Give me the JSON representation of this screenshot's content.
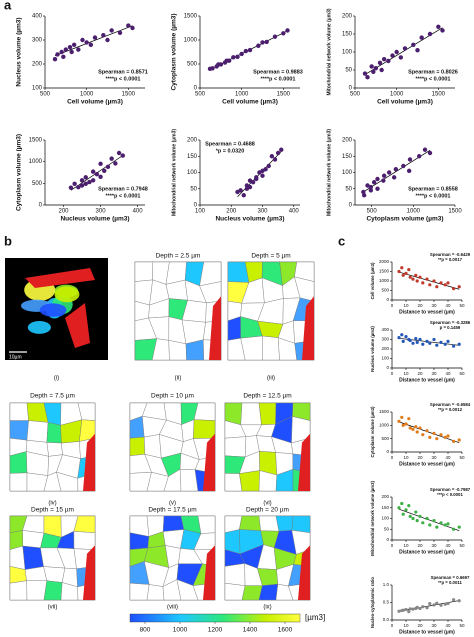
{
  "panel_labels": [
    "a",
    "b",
    "c"
  ],
  "panel_b": {
    "images": [
      {
        "label": "(i)",
        "scale_bar": "10µm"
      },
      {
        "title": "Depth = 2.5 µm",
        "label": "(ii)"
      },
      {
        "title": "Depth = 5 µm",
        "label": "(iii)"
      },
      {
        "title": "Depth = 7.5 µm",
        "label": "(iv)"
      },
      {
        "title": "Depth = 10 µm",
        "label": "(v)"
      },
      {
        "title": "Depth = 12.5 µm",
        "label": "(vi)"
      },
      {
        "title": "Depth = 15 µm",
        "label": "(vii)"
      },
      {
        "title": "Depth = 17.5 µm",
        "label": "(viii)"
      },
      {
        "title": "Depth = 20 µm",
        "label": "(ix)"
      }
    ],
    "colorbar": {
      "ticks": [
        800,
        1000,
        1200,
        1400,
        1600
      ],
      "unit": "[µm3]"
    }
  },
  "chart_data": [
    {
      "type": "scatter",
      "xlabel": "Cell volume (µm3)",
      "ylabel": "Nucleus volume (µm3)",
      "annotations": [
        "Spearman = 0.8571",
        "****p < 0.0001"
      ],
      "color": "#4b1e6e",
      "x": [
        620,
        650,
        700,
        720,
        750,
        800,
        820,
        850,
        900,
        950,
        1000,
        1050,
        1100,
        1200,
        1250,
        1300,
        1400,
        1500,
        1550
      ],
      "y": [
        220,
        240,
        250,
        230,
        260,
        270,
        250,
        280,
        260,
        300,
        290,
        280,
        310,
        320,
        300,
        340,
        330,
        360,
        350
      ],
      "xlim": [
        500,
        1700
      ],
      "ylim": [
        100,
        400
      ],
      "xticks": [
        500,
        1000,
        1500
      ],
      "yticks": [
        100,
        200,
        300,
        400
      ]
    },
    {
      "type": "scatter",
      "xlabel": "Cell volume (µm3)",
      "ylabel": "Cytoplasm volume (µm3)",
      "annotations": [
        "Spearman = 0.9883",
        "****p < 0.0001"
      ],
      "color": "#4b1e6e",
      "x": [
        620,
        650,
        700,
        720,
        750,
        800,
        820,
        850,
        900,
        950,
        1000,
        1050,
        1100,
        1200,
        1250,
        1300,
        1400,
        1500,
        1550
      ],
      "y": [
        400,
        410,
        450,
        490,
        490,
        530,
        570,
        570,
        640,
        650,
        710,
        770,
        790,
        880,
        950,
        960,
        1070,
        1140,
        1200
      ],
      "xlim": [
        500,
        1700
      ],
      "ylim": [
        0,
        1500
      ],
      "xticks": [
        500,
        1000,
        1500
      ],
      "yticks": [
        0,
        500,
        1000,
        1500
      ]
    },
    {
      "type": "scatter",
      "xlabel": "Cell volume (µm3)",
      "ylabel": "Mitochondrial network volume (µm3)",
      "annotations": [
        "Spearman = 0.8026",
        "****p < 0.0001"
      ],
      "color": "#4b1e6e",
      "x": [
        620,
        650,
        700,
        720,
        750,
        800,
        820,
        850,
        900,
        950,
        1000,
        1050,
        1100,
        1200,
        1250,
        1300,
        1400,
        1500,
        1550
      ],
      "y": [
        40,
        30,
        60,
        45,
        55,
        70,
        50,
        80,
        75,
        90,
        100,
        85,
        110,
        120,
        105,
        140,
        150,
        170,
        160
      ],
      "xlim": [
        500,
        1700
      ],
      "ylim": [
        0,
        200
      ],
      "xticks": [
        500,
        1000,
        1500
      ],
      "yticks": [
        0,
        50,
        100,
        150,
        200
      ]
    },
    {
      "type": "scatter",
      "xlabel": "Nucleus volume (µm3)",
      "ylabel": "Cytoplasm volume (µm3)",
      "annotations": [
        "Spearman = 0.7948",
        "****p < 0.0001"
      ],
      "color": "#4b1e6e",
      "x": [
        220,
        240,
        250,
        230,
        260,
        270,
        250,
        280,
        260,
        300,
        290,
        280,
        310,
        320,
        300,
        340,
        330,
        360,
        350
      ],
      "y": [
        400,
        410,
        450,
        490,
        490,
        530,
        570,
        570,
        640,
        650,
        710,
        770,
        790,
        880,
        950,
        960,
        1070,
        1140,
        1200
      ],
      "xlim": [
        150,
        420
      ],
      "ylim": [
        0,
        1500
      ],
      "xticks": [
        200,
        300,
        400
      ],
      "yticks": [
        0,
        500,
        1000,
        1500
      ]
    },
    {
      "type": "scatter",
      "xlabel": "Nucleus volume (µm3)",
      "ylabel": "Mitochondrial network volume (µm3)",
      "annotations": [
        "Spearman = 0.4688",
        "*p = 0.0320"
      ],
      "color": "#4b1e6e",
      "x": [
        220,
        240,
        250,
        230,
        260,
        270,
        250,
        280,
        260,
        300,
        290,
        280,
        310,
        320,
        300,
        340,
        330,
        360,
        350
      ],
      "y": [
        40,
        30,
        60,
        45,
        55,
        70,
        50,
        80,
        75,
        90,
        100,
        85,
        110,
        120,
        105,
        140,
        150,
        170,
        160
      ],
      "xlim": [
        100,
        420
      ],
      "ylim": [
        0,
        200
      ],
      "xticks": [
        100,
        200,
        300,
        400
      ],
      "yticks": [
        0,
        50,
        100,
        150,
        200
      ]
    },
    {
      "type": "scatter",
      "xlabel": "Cytoplasm volume (µm3)",
      "ylabel": "Mitochondrial network volume (µm3)",
      "annotations": [
        "Spearman = 0.8558",
        "****p < 0.0001"
      ],
      "color": "#4b1e6e",
      "x": [
        400,
        410,
        450,
        490,
        490,
        530,
        570,
        570,
        640,
        650,
        710,
        770,
        790,
        880,
        950,
        960,
        1070,
        1140,
        1200
      ],
      "y": [
        40,
        30,
        60,
        45,
        55,
        70,
        50,
        80,
        75,
        90,
        100,
        85,
        110,
        120,
        105,
        140,
        150,
        170,
        160
      ],
      "xlim": [
        300,
        1500
      ],
      "ylim": [
        0,
        200
      ],
      "xticks": [
        500,
        1000,
        1500
      ],
      "yticks": [
        0,
        50,
        100,
        150,
        200
      ]
    },
    {
      "type": "scatter",
      "xlabel": "Distance to vessel (µm)",
      "ylabel": "Cell volume (µm3)",
      "annotations": [
        "Spearman = -0.6429",
        "**p = 0.0017"
      ],
      "color": "#c0392b",
      "x": [
        5,
        7,
        8,
        10,
        12,
        13,
        15,
        17,
        18,
        20,
        22,
        25,
        27,
        30,
        32,
        35,
        38,
        40,
        44,
        48
      ],
      "y": [
        1500,
        1700,
        1300,
        1400,
        1600,
        1200,
        1100,
        1300,
        1000,
        1200,
        900,
        1100,
        800,
        1000,
        700,
        900,
        800,
        900,
        600,
        700
      ],
      "xlim": [
        0,
        50
      ],
      "ylim": [
        0,
        2000
      ],
      "xticks": [
        0,
        10,
        20,
        30,
        40,
        50
      ],
      "yticks": [
        0,
        500,
        1000,
        1500,
        2000
      ]
    },
    {
      "type": "scatter",
      "xlabel": "Distance to vessel (µm)",
      "ylabel": "Nucleus volume (µm3)",
      "annotations": [
        "Spearman = -0.3286",
        "p = 0.1459"
      ],
      "color": "#2457b8",
      "x": [
        5,
        7,
        8,
        10,
        12,
        13,
        15,
        17,
        18,
        20,
        22,
        25,
        27,
        30,
        32,
        35,
        38,
        40,
        44,
        48
      ],
      "y": [
        320,
        350,
        280,
        330,
        300,
        290,
        260,
        310,
        270,
        300,
        250,
        280,
        260,
        300,
        240,
        270,
        250,
        280,
        230,
        250
      ],
      "xlim": [
        0,
        50
      ],
      "ylim": [
        0,
        400
      ],
      "xticks": [
        0,
        10,
        20,
        30,
        40,
        50
      ],
      "yticks": [
        0,
        100,
        200,
        300,
        400
      ]
    },
    {
      "type": "scatter",
      "xlabel": "Distance to vessel (µm)",
      "ylabel": "Cytoplasm volume (µm3)",
      "annotations": [
        "Spearman = -0.6584",
        "**p = 0.0012"
      ],
      "color": "#e07b1a",
      "x": [
        5,
        7,
        8,
        10,
        12,
        13,
        15,
        17,
        18,
        20,
        22,
        25,
        27,
        30,
        32,
        35,
        38,
        40,
        44,
        48
      ],
      "y": [
        1150,
        1300,
        1000,
        1050,
        1250,
        900,
        850,
        950,
        750,
        900,
        650,
        800,
        550,
        700,
        500,
        650,
        550,
        600,
        400,
        450
      ],
      "xlim": [
        0,
        50
      ],
      "ylim": [
        0,
        1500
      ],
      "xticks": [
        0,
        10,
        20,
        30,
        40,
        50
      ],
      "yticks": [
        0,
        500,
        1000,
        1500
      ]
    },
    {
      "type": "scatter",
      "xlabel": "Distance to vessel (µm)",
      "ylabel": "Mitochondrial network volume (µm3)",
      "annotations": [
        "Spearman = -0.7987",
        "***p < 0.0001"
      ],
      "color": "#3cb043",
      "x": [
        5,
        7,
        8,
        10,
        12,
        13,
        15,
        17,
        18,
        20,
        22,
        25,
        27,
        30,
        32,
        35,
        38,
        40,
        44,
        48
      ],
      "y": [
        150,
        170,
        120,
        140,
        160,
        110,
        100,
        130,
        90,
        110,
        80,
        100,
        70,
        90,
        60,
        80,
        70,
        75,
        50,
        60
      ],
      "xlim": [
        0,
        50
      ],
      "ylim": [
        0,
        200
      ],
      "xticks": [
        0,
        10,
        20,
        30,
        40,
        50
      ],
      "yticks": [
        0,
        50,
        100,
        150,
        200
      ]
    },
    {
      "type": "scatter",
      "xlabel": "Distance to vessel (µm)",
      "ylabel": "Nucleo-cytoplasmic ratio",
      "annotations": [
        "Spearman = 0.6697",
        "**p = 0.0011"
      ],
      "color": "#888888",
      "x": [
        5,
        7,
        8,
        10,
        12,
        13,
        15,
        17,
        18,
        20,
        22,
        25,
        27,
        30,
        32,
        35,
        38,
        40,
        44,
        48
      ],
      "y": [
        0.25,
        0.27,
        0.28,
        0.3,
        0.24,
        0.32,
        0.31,
        0.33,
        0.36,
        0.33,
        0.38,
        0.35,
        0.47,
        0.43,
        0.48,
        0.42,
        0.45,
        0.47,
        0.58,
        0.55
      ],
      "xlim": [
        0,
        50
      ],
      "ylim": [
        0,
        1
      ],
      "xticks": [
        0,
        10,
        20,
        30,
        40,
        50
      ],
      "yticks": [
        {
          "value": 0,
          "label": "0.0"
        },
        0.5,
        {
          "value": 1,
          "label": "1.0"
        }
      ]
    }
  ]
}
